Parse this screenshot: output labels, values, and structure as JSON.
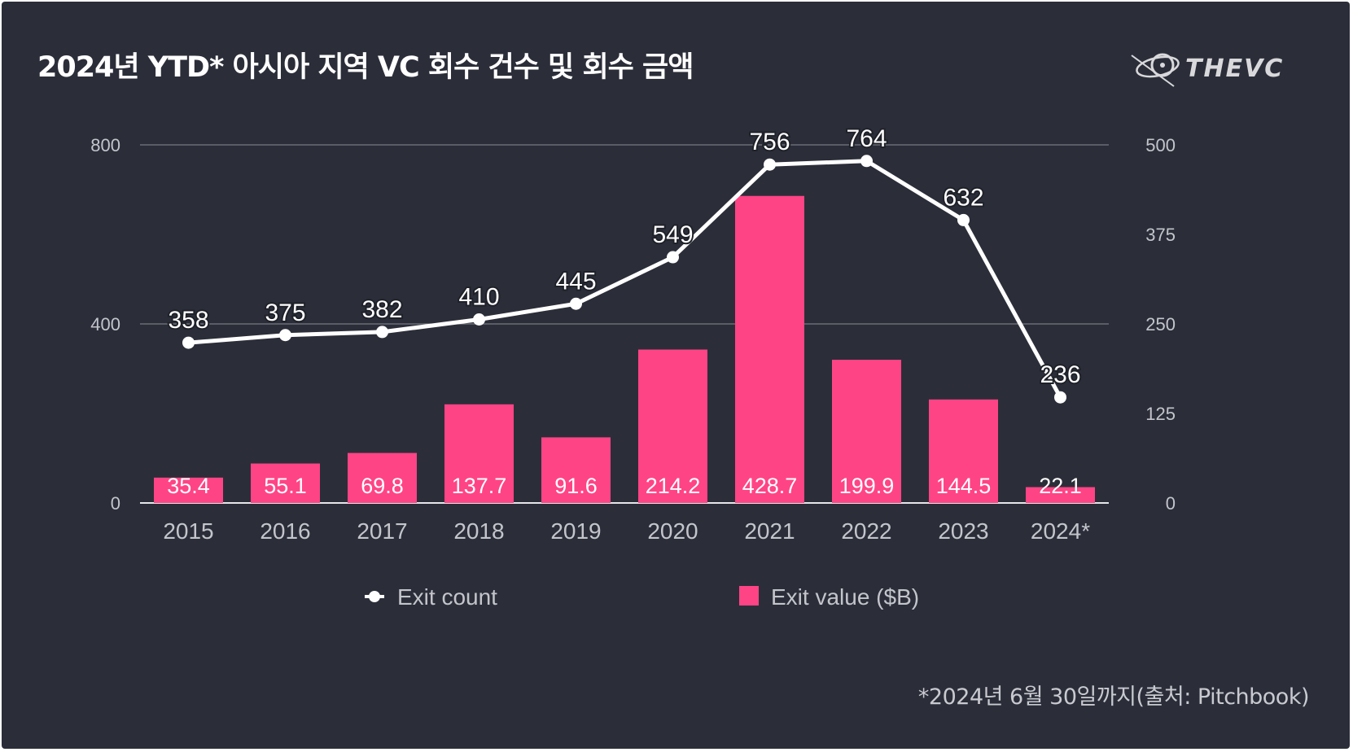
{
  "title": "2024년 YTD* 아시아 지역 VC 회수 건수 및 회수 금액",
  "logo_text": "THEVC",
  "footnote": "*2024년 6월 30일까지(출처: Pitchbook)",
  "colors": {
    "background": "#2b2e39",
    "bar": "#ff4485",
    "line": "#ffffff",
    "grid": "#8a8c94",
    "axis_text": "#c4c5cb"
  },
  "chart_data": {
    "type": "bar",
    "title": "2024년 YTD* 아시아 지역 VC 회수 건수 및 회수 금액",
    "categories": [
      "2015",
      "2016",
      "2017",
      "2018",
      "2019",
      "2020",
      "2021",
      "2022",
      "2023",
      "2024*"
    ],
    "series": [
      {
        "name": "Exit value ($B)",
        "type": "bar",
        "axis": "right",
        "values": [
          35.4,
          55.1,
          69.8,
          137.7,
          91.6,
          214.2,
          428.7,
          199.9,
          144.5,
          22.1
        ]
      },
      {
        "name": "Exit count",
        "type": "line",
        "axis": "left",
        "values": [
          358,
          375,
          382,
          410,
          445,
          549,
          756,
          764,
          632,
          236
        ]
      }
    ],
    "left_axis": {
      "ticks": [
        "0",
        "400",
        "800"
      ],
      "ylim": [
        0,
        800
      ]
    },
    "right_axis": {
      "ticks": [
        "0",
        "125",
        "250",
        "375",
        "500"
      ],
      "ylim": [
        0,
        500
      ]
    },
    "grid": true,
    "legend_position": "bottom"
  }
}
